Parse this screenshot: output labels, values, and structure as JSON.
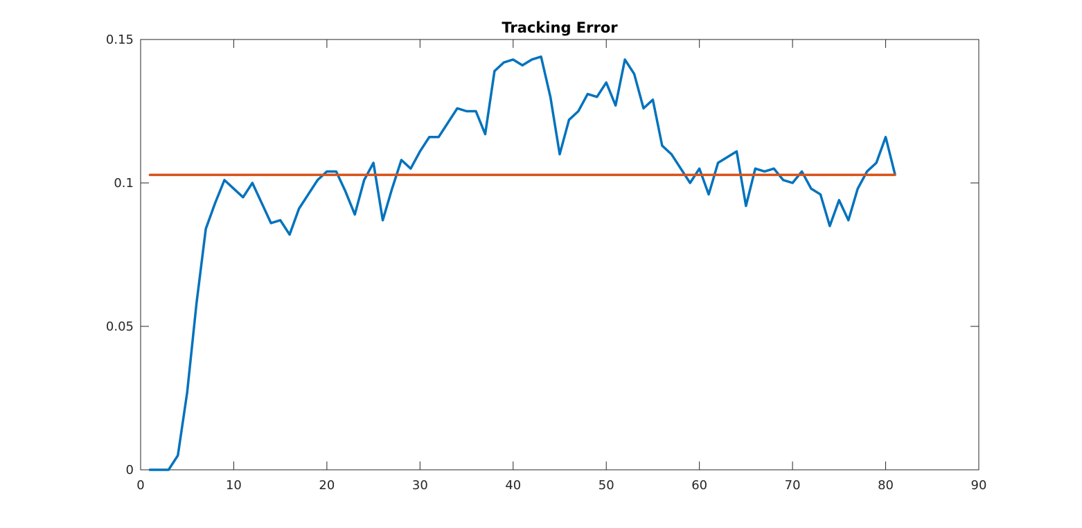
{
  "chart_data": {
    "type": "line",
    "title": "Tracking Error",
    "xlabel": "",
    "ylabel": "",
    "xlim": [
      0,
      90
    ],
    "ylim": [
      0,
      0.15
    ],
    "xticks": [
      0,
      10,
      20,
      30,
      40,
      50,
      60,
      70,
      80,
      90
    ],
    "xtick_labels": [
      "0",
      "10",
      "20",
      "30",
      "40",
      "50",
      "60",
      "70",
      "80",
      "90"
    ],
    "yticks": [
      0,
      0.05,
      0.1,
      0.15
    ],
    "ytick_labels": [
      "0",
      "0.05",
      "0.1",
      "0.15"
    ],
    "grid": false,
    "series": [
      {
        "color": "#0072BD",
        "x": [
          1,
          2,
          3,
          4,
          5,
          6,
          7,
          8,
          9,
          10,
          11,
          12,
          13,
          14,
          15,
          16,
          17,
          18,
          19,
          20,
          21,
          22,
          23,
          24,
          25,
          26,
          27,
          28,
          29,
          30,
          31,
          32,
          33,
          34,
          35,
          36,
          37,
          38,
          39,
          40,
          41,
          42,
          43,
          44,
          45,
          46,
          47,
          48,
          49,
          50,
          51,
          52,
          53,
          54,
          55,
          56,
          57,
          58,
          59,
          60,
          61,
          62,
          63,
          64,
          65,
          66,
          67,
          68,
          69,
          70,
          71,
          72,
          73,
          74,
          75,
          76,
          77,
          78,
          79,
          80,
          81
        ],
        "values": [
          0,
          0,
          0,
          0.005,
          0.027,
          0.058,
          0.084,
          0.093,
          0.101,
          0.098,
          0.095,
          0.1,
          0.093,
          0.086,
          0.087,
          0.082,
          0.091,
          0.096,
          0.101,
          0.104,
          0.104,
          0.097,
          0.089,
          0.101,
          0.107,
          0.087,
          0.098,
          0.108,
          0.105,
          0.111,
          0.116,
          0.116,
          0.121,
          0.126,
          0.125,
          0.125,
          0.117,
          0.139,
          0.142,
          0.143,
          0.141,
          0.143,
          0.144,
          0.13,
          0.11,
          0.122,
          0.125,
          0.131,
          0.13,
          0.135,
          0.127,
          0.143,
          0.138,
          0.126,
          0.129,
          0.113,
          0.11,
          0.105,
          0.1,
          0.105,
          0.096,
          0.107,
          0.109,
          0.111,
          0.092,
          0.105,
          0.104,
          0.105,
          0.101,
          0.1,
          0.104,
          0.098,
          0.096,
          0.085,
          0.094,
          0.087,
          0.098,
          0.104,
          0.107,
          0.116,
          0.103
        ]
      },
      {
        "color": "#D95319",
        "x": [
          1,
          81
        ],
        "values": [
          0.1028,
          0.1028
        ]
      }
    ]
  }
}
